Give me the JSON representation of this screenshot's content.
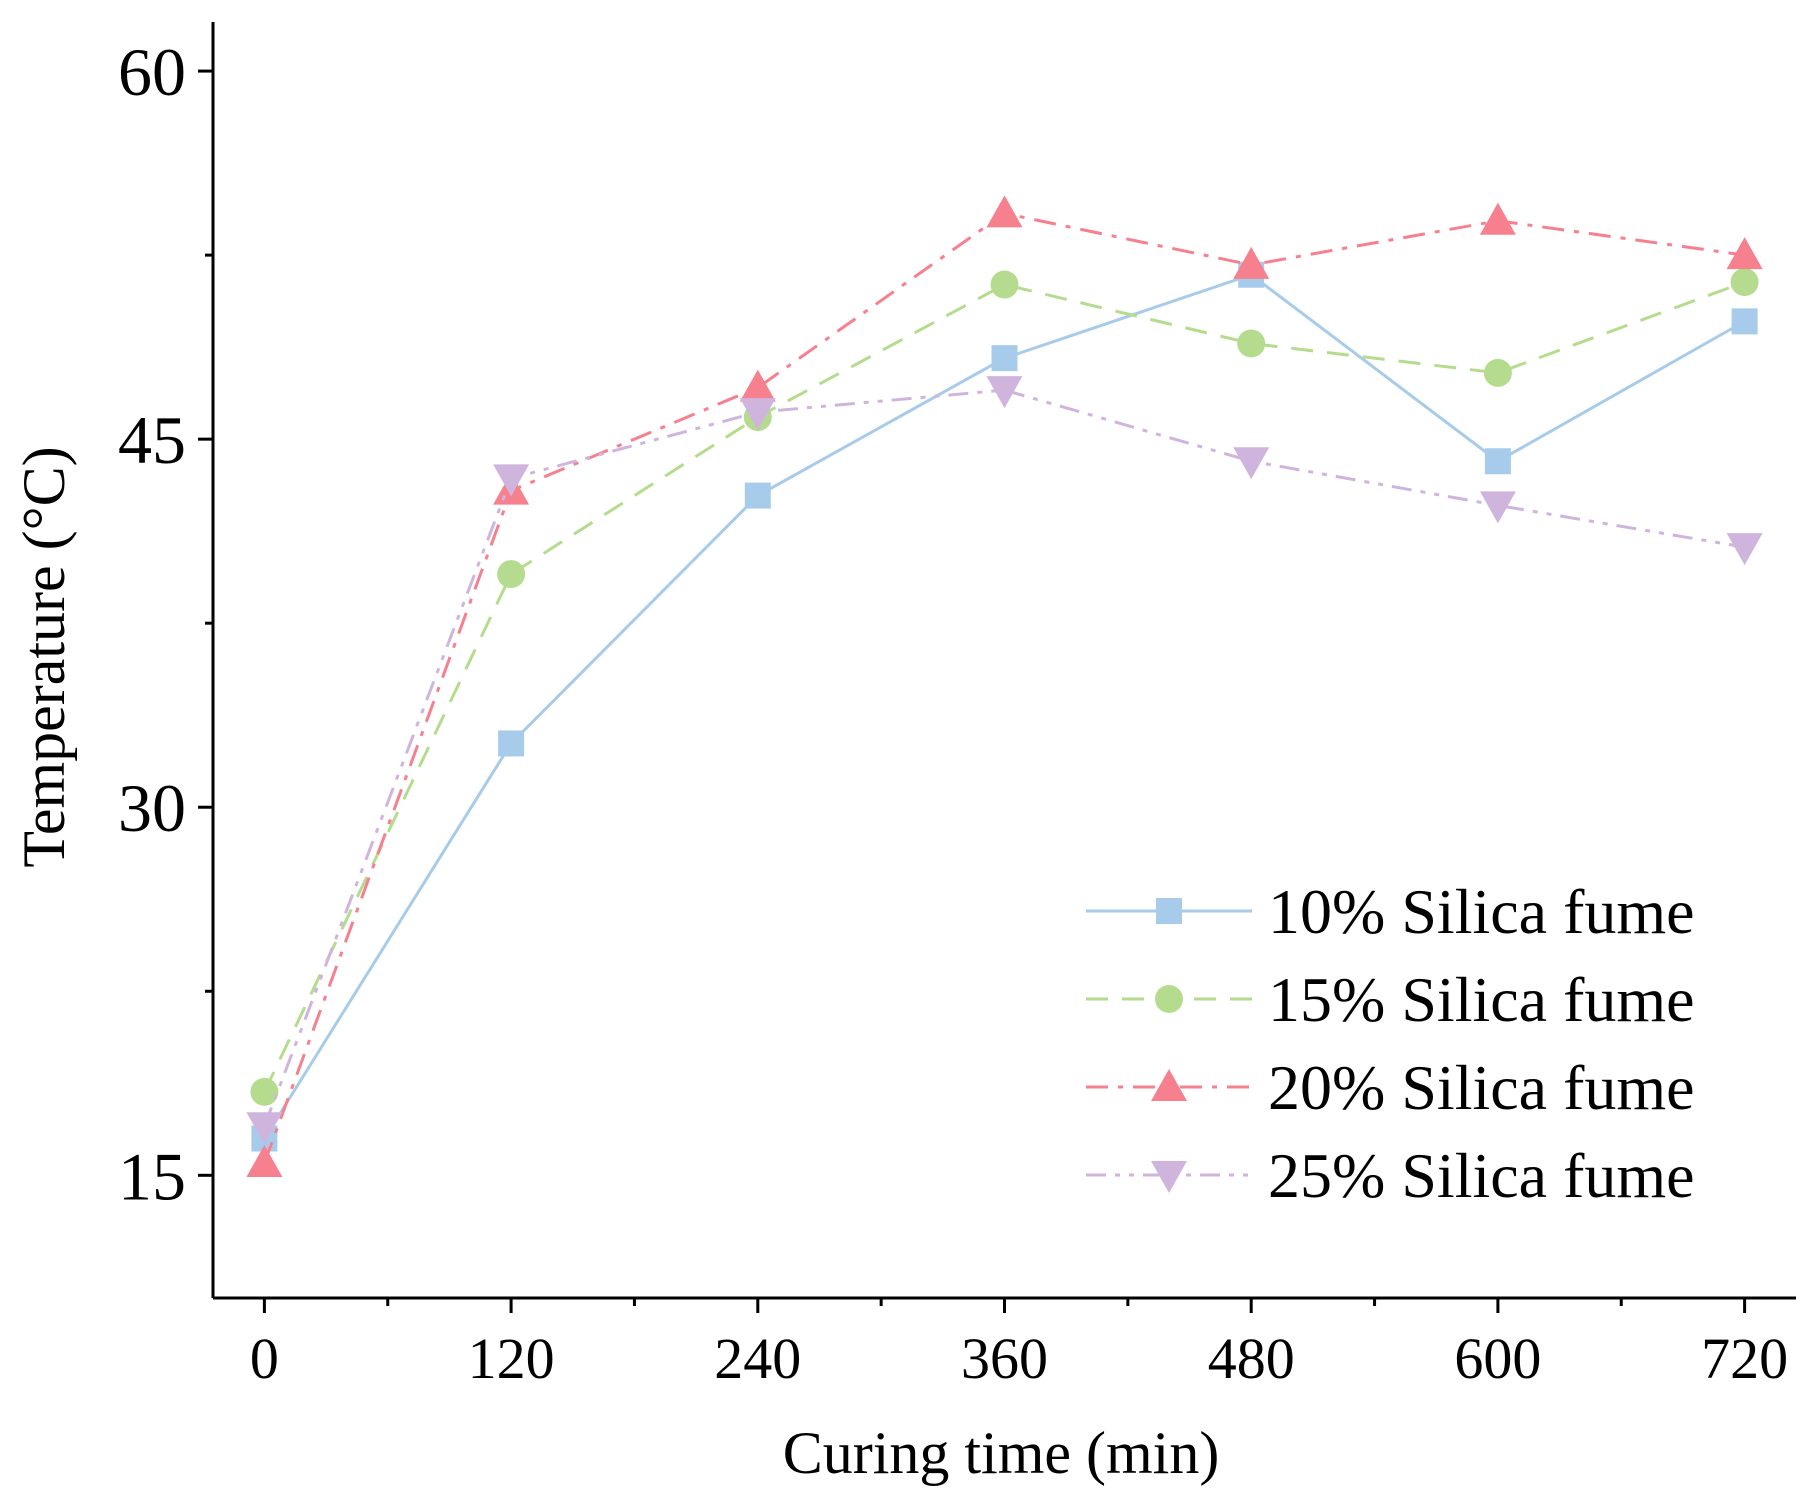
{
  "chart_data": {
    "type": "line",
    "title": "",
    "xlabel": "Curing time (min)",
    "ylabel": "Temperature (°C)",
    "x": [
      0,
      120,
      240,
      360,
      480,
      600,
      720
    ],
    "xlim": [
      -25,
      745
    ],
    "ylim": [
      10,
      62
    ],
    "xticks": [
      "0",
      "120",
      "240",
      "360",
      "480",
      "600",
      "720"
    ],
    "yticks": [
      "15",
      "30",
      "45",
      "60"
    ],
    "grid": false,
    "legend_position": "bottom-right",
    "series": [
      {
        "name": "10% Silica fume",
        "values": [
          16.5,
          32.6,
          42.7,
          48.3,
          51.7,
          44.1,
          49.8
        ],
        "color": "#a7cbea",
        "marker": "square",
        "dash": "solid"
      },
      {
        "name": "15% Silica fume",
        "values": [
          18.4,
          39.5,
          45.9,
          51.3,
          48.9,
          47.7,
          51.4
        ],
        "color": "#b5dc8e",
        "marker": "circle",
        "dash": "dashed"
      },
      {
        "name": "20% Silica fume",
        "values": [
          15.5,
          42.9,
          47.1,
          54.2,
          52.1,
          53.9,
          52.5
        ],
        "color": "#f6808e",
        "marker": "triangle-up",
        "dash": "dash-dot"
      },
      {
        "name": "25% Silica fume",
        "values": [
          17.0,
          43.4,
          46.1,
          47.0,
          44.1,
          42.3,
          40.6
        ],
        "color": "#cfb5de",
        "marker": "triangle-down",
        "dash": "dash-dot-dot"
      }
    ]
  }
}
